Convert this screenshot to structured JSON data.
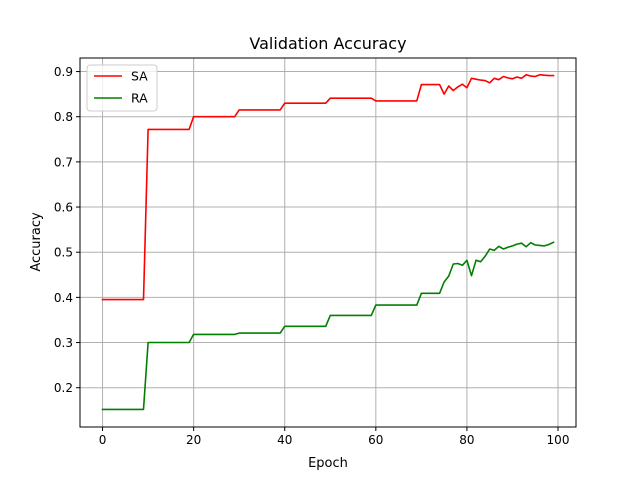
{
  "chart_data": {
    "type": "line",
    "title": "Validation Accuracy",
    "xlabel": "Epoch",
    "ylabel": "Accuracy",
    "xlim": [
      -4.95,
      103.95
    ],
    "ylim": [
      0.113,
      0.93
    ],
    "xticks": [
      0,
      20,
      40,
      60,
      80,
      100
    ],
    "yticks": [
      0.2,
      0.3,
      0.4,
      0.5,
      0.6,
      0.7,
      0.8,
      0.9
    ],
    "xtick_labels": [
      "0",
      "20",
      "40",
      "60",
      "80",
      "100"
    ],
    "ytick_labels": [
      "0.2",
      "0.3",
      "0.4",
      "0.5",
      "0.6",
      "0.7",
      "0.8",
      "0.9"
    ],
    "grid": true,
    "legend_position": "top-left",
    "series": [
      {
        "name": "SA",
        "color": "#ff0000",
        "x": [
          0,
          9,
          10,
          19,
          20,
          29,
          30,
          39,
          40,
          49,
          50,
          59,
          60,
          69,
          70,
          71,
          72,
          73,
          74,
          75,
          76,
          77,
          78,
          79,
          80,
          81,
          82,
          83,
          84,
          85,
          86,
          87,
          88,
          89,
          90,
          91,
          92,
          93,
          94,
          95,
          96,
          97,
          98,
          99
        ],
        "y": [
          0.395,
          0.395,
          0.772,
          0.772,
          0.8,
          0.8,
          0.815,
          0.815,
          0.83,
          0.83,
          0.841,
          0.841,
          0.835,
          0.835,
          0.871,
          0.871,
          0.871,
          0.871,
          0.871,
          0.85,
          0.868,
          0.858,
          0.866,
          0.872,
          0.864,
          0.885,
          0.883,
          0.881,
          0.88,
          0.875,
          0.885,
          0.882,
          0.889,
          0.886,
          0.884,
          0.888,
          0.885,
          0.893,
          0.89,
          0.889,
          0.893,
          0.892,
          0.891,
          0.891
        ]
      },
      {
        "name": "RA",
        "color": "#008000",
        "x": [
          0,
          9,
          10,
          19,
          20,
          29,
          30,
          39,
          40,
          49,
          50,
          59,
          60,
          69,
          70,
          71,
          72,
          73,
          74,
          75,
          76,
          77,
          78,
          79,
          80,
          81,
          82,
          83,
          84,
          85,
          86,
          87,
          88,
          89,
          90,
          91,
          92,
          93,
          94,
          95,
          96,
          97,
          98,
          99
        ],
        "y": [
          0.152,
          0.152,
          0.3,
          0.3,
          0.318,
          0.318,
          0.321,
          0.321,
          0.336,
          0.336,
          0.36,
          0.36,
          0.383,
          0.383,
          0.409,
          0.409,
          0.409,
          0.409,
          0.409,
          0.434,
          0.447,
          0.474,
          0.475,
          0.471,
          0.482,
          0.448,
          0.482,
          0.479,
          0.491,
          0.507,
          0.504,
          0.513,
          0.507,
          0.511,
          0.514,
          0.518,
          0.52,
          0.512,
          0.521,
          0.516,
          0.515,
          0.514,
          0.517,
          0.522
        ]
      }
    ]
  }
}
